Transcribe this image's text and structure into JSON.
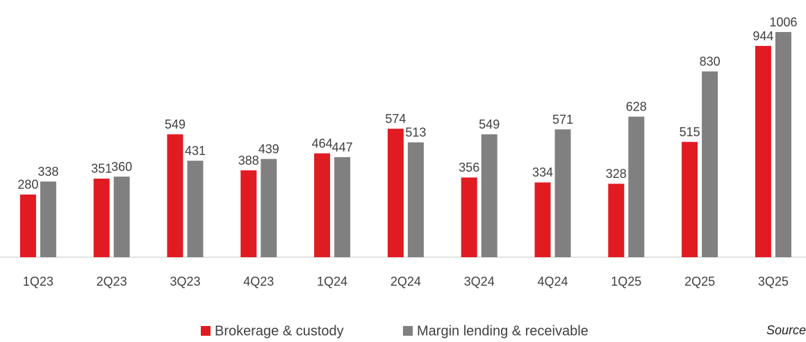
{
  "chart_data": {
    "type": "bar",
    "categories": [
      "1Q23",
      "2Q23",
      "3Q23",
      "4Q23",
      "1Q24",
      "2Q24",
      "3Q24",
      "4Q24",
      "1Q25",
      "2Q25",
      "3Q25"
    ],
    "series": [
      {
        "name": "Brokerage & custody",
        "color": "#e11b22",
        "values": [
          280,
          351,
          549,
          388,
          464,
          574,
          356,
          334,
          328,
          515,
          944
        ]
      },
      {
        "name": "Margin lending & receivable",
        "color": "#808080",
        "values": [
          338,
          360,
          431,
          439,
          447,
          513,
          549,
          571,
          628,
          830,
          1006
        ]
      }
    ],
    "ylim": [
      0,
      1100
    ],
    "source": "Source"
  }
}
